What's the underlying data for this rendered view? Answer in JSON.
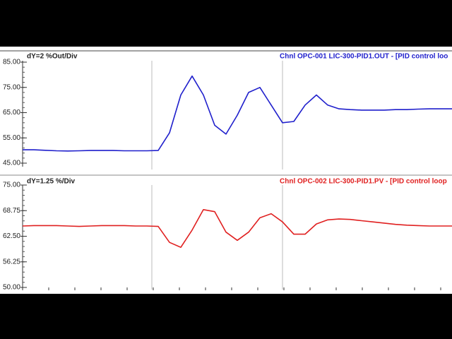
{
  "chart_data": [
    {
      "type": "line",
      "title": "Chnl OPC-001 LIC-300-PID1.OUT - [PID control loo",
      "y_label": "dY=2 %Out/Div",
      "ylim": [
        45,
        85
      ],
      "yticks": [
        {
          "value": 85,
          "label": "85.00"
        },
        {
          "value": 75,
          "label": "75.00"
        },
        {
          "value": 65,
          "label": "65.00"
        },
        {
          "value": 55,
          "label": "55.00"
        },
        {
          "value": 45,
          "label": "45.00"
        }
      ],
      "color": "#1f1fcc",
      "values": [
        50.3,
        50.3,
        50.1,
        49.9,
        49.8,
        49.9,
        50.0,
        50.0,
        50.0,
        49.9,
        49.9,
        49.9,
        50.0,
        57,
        72,
        79.5,
        72,
        60,
        56.5,
        64,
        73,
        75,
        68,
        61,
        61.5,
        68,
        72,
        68,
        66.5,
        66.2,
        66.0,
        66.0,
        66.0,
        66.2,
        66.2,
        66.4,
        66.5,
        66.5,
        66.5
      ]
    },
    {
      "type": "line",
      "title": "Chnl OPC-002 LIC-300-PID1.PV - [PID control loop",
      "y_label": "dY=1.25 %/Div",
      "ylim": [
        50,
        75
      ],
      "yticks": [
        {
          "value": 75,
          "label": "75.00"
        },
        {
          "value": 68.75,
          "label": "68.75"
        },
        {
          "value": 62.5,
          "label": "62.50"
        },
        {
          "value": 56.25,
          "label": "56.25"
        },
        {
          "value": 50,
          "label": "50.00"
        }
      ],
      "color": "#e02020",
      "values": [
        65.0,
        65.1,
        65.1,
        65.1,
        65.0,
        64.9,
        65.0,
        65.1,
        65.1,
        65.1,
        65.0,
        65.0,
        64.9,
        61,
        59.8,
        64,
        69,
        68.5,
        63.5,
        61.5,
        63.5,
        67,
        68,
        66,
        63,
        63,
        65.5,
        66.5,
        66.7,
        66.6,
        66.3,
        66.0,
        65.7,
        65.4,
        65.2,
        65.1,
        65.0,
        65.0,
        65.0
      ]
    }
  ]
}
